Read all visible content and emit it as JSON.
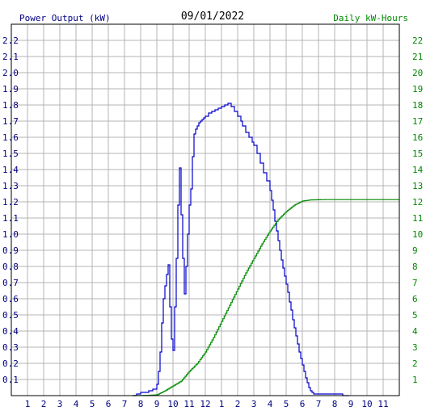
{
  "chart_data": {
    "type": "line",
    "title": "09/01/2022",
    "left_axis_label": "Power Output (kW)",
    "right_axis_label": "Daily kW-Hours",
    "x_tick_labels": [
      "1",
      "2",
      "3",
      "4",
      "5",
      "6",
      "7",
      "8",
      "9",
      "10",
      "11",
      "12",
      "1",
      "2",
      "3",
      "4",
      "5",
      "6",
      "7",
      "8",
      "9",
      "10",
      "11"
    ],
    "x_range_hours": [
      0,
      24
    ],
    "y_left_ticks": [
      "0.1",
      "0.2",
      "0.3",
      "0.4",
      "0.5",
      "0.6",
      "0.7",
      "0.8",
      "0.9",
      "1.0",
      "1.1",
      "1.2",
      "1.3",
      "1.4",
      "1.5",
      "1.6",
      "1.7",
      "1.8",
      "1.9",
      "2.0",
      "2.1",
      "2.2"
    ],
    "y_left_range": [
      0,
      2.3
    ],
    "y_right_ticks": [
      "1",
      "2",
      "3",
      "4",
      "5",
      "6",
      "7",
      "8",
      "9",
      "10",
      "11",
      "12",
      "13",
      "14",
      "15",
      "16",
      "17",
      "18",
      "19",
      "20",
      "21",
      "22"
    ],
    "y_right_range": [
      0,
      23
    ],
    "grid": true,
    "colors": {
      "power": "#0000cc",
      "energy": "#008800",
      "grid": "#b4b4b4",
      "axis_text": "#000080",
      "right_text": "#008800"
    },
    "series": [
      {
        "name": "Power Output (kW)",
        "axis": "left",
        "color": "#0000cc",
        "x": [
          7.5,
          7.75,
          8.0,
          8.25,
          8.5,
          8.75,
          9.0,
          9.1,
          9.2,
          9.3,
          9.4,
          9.5,
          9.6,
          9.7,
          9.8,
          9.9,
          10.0,
          10.1,
          10.2,
          10.3,
          10.4,
          10.5,
          10.6,
          10.7,
          10.8,
          10.9,
          11.0,
          11.1,
          11.2,
          11.3,
          11.4,
          11.5,
          11.6,
          11.7,
          11.8,
          11.9,
          12.0,
          12.2,
          12.4,
          12.6,
          12.8,
          13.0,
          13.2,
          13.4,
          13.6,
          13.8,
          14.0,
          14.2,
          14.3,
          14.5,
          14.7,
          14.9,
          15.0,
          15.2,
          15.4,
          15.6,
          15.8,
          16.0,
          16.1,
          16.2,
          16.3,
          16.4,
          16.5,
          16.6,
          16.7,
          16.8,
          16.9,
          17.0,
          17.1,
          17.2,
          17.3,
          17.4,
          17.5,
          17.6,
          17.7,
          17.8,
          17.9,
          18.0,
          18.1,
          18.2,
          18.3,
          18.4,
          18.5,
          18.6,
          18.7,
          18.8,
          18.9,
          19.0,
          19.1,
          19.2,
          19.3,
          19.4,
          19.5,
          19.6,
          19.7,
          19.8,
          20.0,
          20.2,
          20.5,
          20.9
        ],
        "y": [
          0.0,
          0.01,
          0.02,
          0.02,
          0.03,
          0.04,
          0.07,
          0.15,
          0.27,
          0.45,
          0.6,
          0.68,
          0.75,
          0.81,
          0.55,
          0.35,
          0.28,
          0.55,
          0.85,
          1.18,
          1.41,
          1.12,
          0.85,
          0.63,
          0.8,
          1.0,
          1.18,
          1.28,
          1.48,
          1.62,
          1.65,
          1.67,
          1.69,
          1.7,
          1.71,
          1.72,
          1.73,
          1.75,
          1.76,
          1.77,
          1.78,
          1.79,
          1.8,
          1.81,
          1.79,
          1.76,
          1.73,
          1.7,
          1.67,
          1.63,
          1.6,
          1.57,
          1.55,
          1.5,
          1.44,
          1.38,
          1.33,
          1.27,
          1.21,
          1.15,
          1.08,
          1.02,
          0.96,
          0.9,
          0.84,
          0.79,
          0.74,
          0.69,
          0.64,
          0.58,
          0.53,
          0.47,
          0.42,
          0.37,
          0.32,
          0.27,
          0.23,
          0.19,
          0.15,
          0.11,
          0.08,
          0.05,
          0.03,
          0.02,
          0.01,
          0.01,
          0.01,
          0.01,
          0.01,
          0.01,
          0.01,
          0.01,
          0.01,
          0.01,
          0.01,
          0.01,
          0.01,
          0.01,
          0.0,
          0.0
        ]
      },
      {
        "name": "Daily kW-Hours",
        "axis": "right",
        "color": "#008800",
        "x": [
          7.5,
          8.0,
          8.5,
          9.0,
          9.5,
          10.0,
          10.5,
          11.0,
          11.5,
          12.0,
          12.5,
          13.0,
          13.5,
          14.0,
          14.5,
          15.0,
          15.5,
          16.0,
          16.5,
          17.0,
          17.5,
          18.0,
          18.5,
          19.0,
          19.5,
          20.0,
          20.5,
          21.0,
          22.0,
          23.0,
          24.0
        ],
        "y": [
          0.0,
          0.01,
          0.02,
          0.05,
          0.3,
          0.6,
          0.9,
          1.5,
          2.0,
          2.7,
          3.6,
          4.6,
          5.6,
          6.6,
          7.6,
          8.5,
          9.4,
          10.2,
          10.9,
          11.4,
          11.8,
          12.05,
          12.12,
          12.13,
          12.14,
          12.14,
          12.14,
          12.14,
          12.14,
          12.14,
          12.14
        ]
      }
    ]
  }
}
